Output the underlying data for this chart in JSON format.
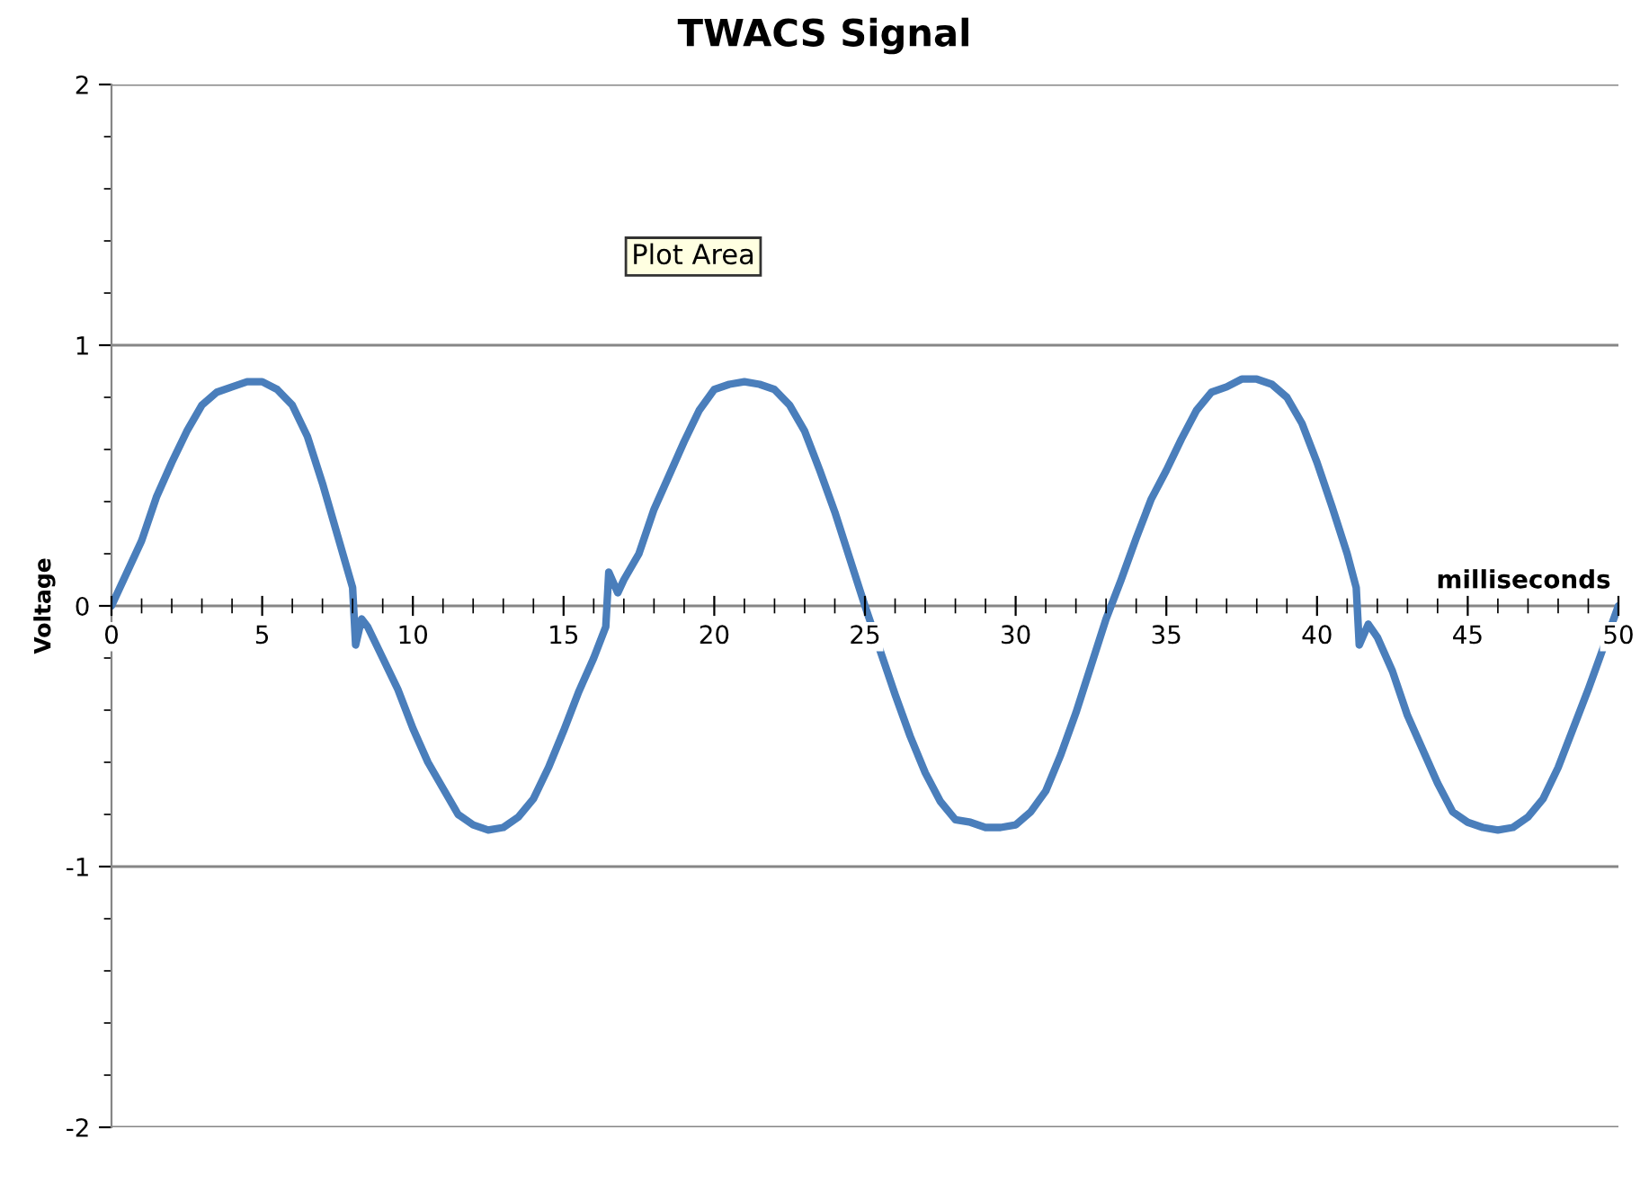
{
  "chart_data": {
    "type": "line",
    "title": "TWACS Signal",
    "xlabel": "milliseconds",
    "ylabel": "Voltage",
    "annotations": [
      "Plot Area"
    ],
    "xlim": [
      0,
      50
    ],
    "xticks": [
      0,
      5,
      10,
      15,
      20,
      25,
      30,
      35,
      40,
      45,
      50
    ],
    "ylim": [
      -2,
      2
    ],
    "yticks": [
      -2,
      -1,
      0,
      1,
      2
    ],
    "grid": "y",
    "marker": "none",
    "line_style": "solid",
    "series": [
      {
        "color": "#4a7ebb",
        "x": [
          0,
          1,
          1.5,
          2,
          2.5,
          3,
          3.5,
          4,
          4.5,
          5,
          5.5,
          6,
          6.5,
          7,
          7.5,
          8,
          8.1,
          8.3,
          8.5,
          9,
          9.5,
          10,
          10.5,
          11,
          11.5,
          12,
          12.5,
          13,
          13.5,
          14,
          14.5,
          15,
          15.5,
          16,
          16.4,
          16.5,
          16.8,
          17,
          17.5,
          18,
          18.5,
          19,
          19.5,
          20,
          20.5,
          21,
          21.5,
          22,
          22.5,
          23,
          23.5,
          24,
          24.5,
          25,
          25.5,
          26,
          26.5,
          27,
          27.5,
          28,
          28.5,
          29,
          29.5,
          30,
          30.5,
          31,
          31.5,
          32,
          32.5,
          33,
          33.5,
          34,
          34.5,
          35,
          35.5,
          36,
          36.5,
          37,
          37.5,
          38,
          38.5,
          39,
          39.5,
          40,
          40.5,
          41,
          41.3,
          41.4,
          41.7,
          42,
          42.5,
          43,
          43.5,
          44,
          44.5,
          45,
          45.5,
          46,
          46.5,
          47,
          47.5,
          48,
          48.5,
          49,
          49.5,
          50
        ],
        "values": [
          0,
          0.25,
          0.42,
          0.55,
          0.67,
          0.77,
          0.82,
          0.84,
          0.86,
          0.86,
          0.83,
          0.77,
          0.65,
          0.47,
          0.27,
          0.07,
          -0.15,
          -0.05,
          -0.08,
          -0.2,
          -0.32,
          -0.47,
          -0.6,
          -0.7,
          -0.8,
          -0.84,
          -0.86,
          -0.85,
          -0.81,
          -0.74,
          -0.62,
          -0.48,
          -0.33,
          -0.2,
          -0.08,
          0.13,
          0.05,
          0.1,
          0.2,
          0.37,
          0.5,
          0.63,
          0.75,
          0.83,
          0.85,
          0.86,
          0.85,
          0.83,
          0.77,
          0.67,
          0.52,
          0.36,
          0.18,
          0,
          -0.17,
          -0.34,
          -0.5,
          -0.64,
          -0.75,
          -0.82,
          -0.83,
          -0.85,
          -0.85,
          -0.84,
          -0.79,
          -0.71,
          -0.57,
          -0.41,
          -0.23,
          -0.05,
          0.1,
          0.26,
          0.41,
          0.52,
          0.64,
          0.75,
          0.82,
          0.84,
          0.87,
          0.87,
          0.85,
          0.8,
          0.7,
          0.55,
          0.38,
          0.2,
          0.07,
          -0.15,
          -0.07,
          -0.12,
          -0.25,
          -0.42,
          -0.55,
          -0.68,
          -0.79,
          -0.83,
          -0.85,
          -0.86,
          -0.85,
          -0.81,
          -0.74,
          -0.62,
          -0.47,
          -0.32,
          -0.16,
          0
        ]
      }
    ]
  }
}
